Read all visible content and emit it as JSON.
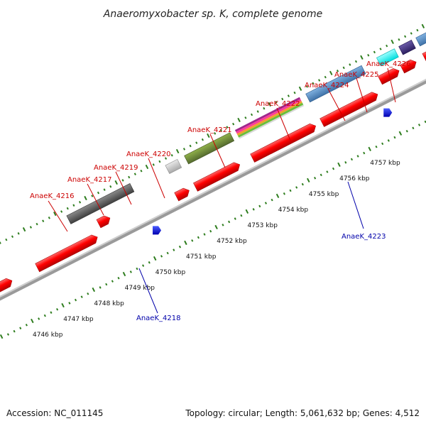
{
  "title": "Anaeromyxobacter sp. K, complete genome",
  "footer": {
    "accession": "Accession: NC_011145",
    "summary": "Topology: circular; Length: 5,061,632 bp; Genes: 4,512"
  },
  "colors": {
    "forward_gene": "#ff0000",
    "reverse_gene": "#ff0000",
    "label_top": "#cc0000",
    "label_bottom": "#0000aa",
    "tick_green": "#2e7d1e",
    "axis": "#888888"
  },
  "scale": {
    "ticks": [
      "4746 kbp",
      "4747 kbp",
      "4748 kbp",
      "4749 kbp",
      "4750 kbp",
      "4751 kbp",
      "4752 kbp",
      "4753 kbp",
      "4754 kbp",
      "4755 kbp",
      "4756 kbp",
      "4757 kbp"
    ]
  },
  "genes_top": [
    {
      "label": "AnaeK_4216",
      "feature": "dark-gray"
    },
    {
      "label": "AnaeK_4217",
      "feature": "red"
    },
    {
      "label": "AnaeK_4219",
      "feature": "light-gray"
    },
    {
      "label": "AnaeK_4220",
      "feature": "olive"
    },
    {
      "label": "AnaeK_4221",
      "feature": "multi-stripe"
    },
    {
      "label": "AnaeK_4222",
      "feature": "steel-blue"
    },
    {
      "label": "AnaeK_4224",
      "feature": "cyan"
    },
    {
      "label": "AnaeK_4225",
      "feature": "dark-purple"
    },
    {
      "label": "AnaeK_4226",
      "feature": "steel-blue"
    }
  ],
  "genes_bottom": [
    {
      "label": "AnaeK_4218",
      "feature": "blue"
    },
    {
      "label": "AnaeK_4223",
      "feature": "blue"
    }
  ]
}
